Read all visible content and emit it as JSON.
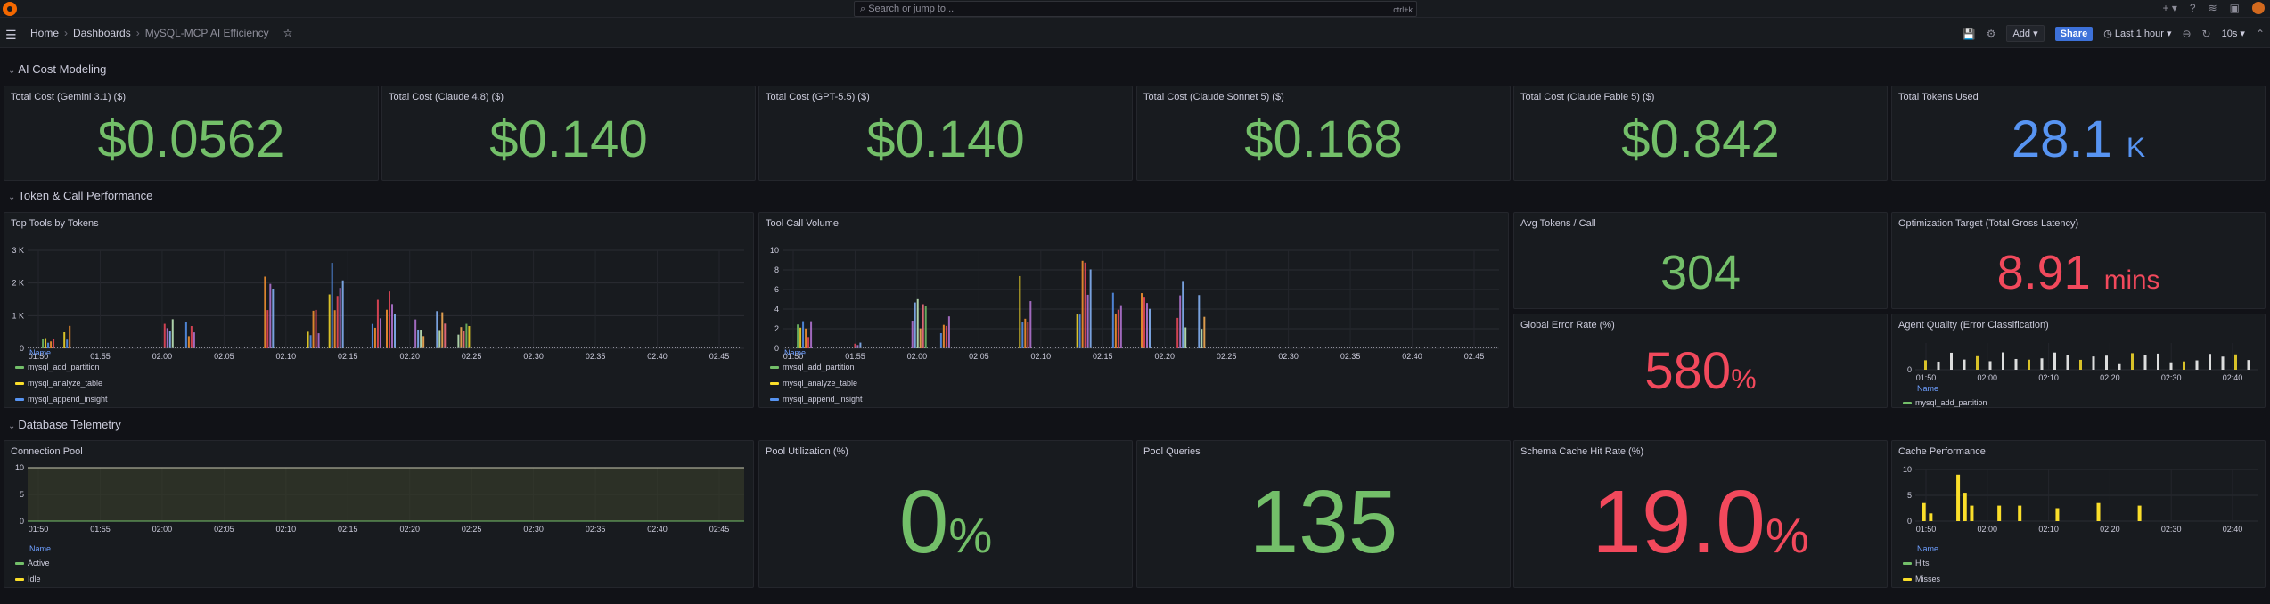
{
  "topbar": {
    "search_placeholder": "Search or jump to...",
    "shortcut": "ctrl+k"
  },
  "breadcrumb": {
    "home": "Home",
    "dashboards": "Dashboards",
    "current": "MySQL-MCP AI Efficiency"
  },
  "toolbar": {
    "add_label": "Add",
    "share_label": "Share",
    "time_range": "Last 1 hour",
    "refresh": "10s"
  },
  "sections": {
    "ai_cost": "AI Cost Modeling",
    "token_perf": "Token & Call Performance",
    "db_telemetry": "Database Telemetry"
  },
  "stats": {
    "gemini": {
      "title": "Total Cost (Gemini 3.1) ($)",
      "value": "$0.0562"
    },
    "claude48": {
      "title": "Total Cost (Claude 4.8) ($)",
      "value": "$0.140"
    },
    "gpt55": {
      "title": "Total Cost (GPT-5.5) ($)",
      "value": "$0.140"
    },
    "sonnet5": {
      "title": "Total Cost (Claude Sonnet 5) ($)",
      "value": "$0.168"
    },
    "fable5": {
      "title": "Total Cost (Claude Fable 5) ($)",
      "value": "$0.842"
    },
    "tokens": {
      "title": "Total Tokens Used",
      "value": "28.1",
      "unit": "K"
    },
    "avg_tokens": {
      "title": "Avg Tokens / Call",
      "value": "304"
    },
    "opt_target": {
      "title": "Optimization Target (Total Gross Latency)",
      "value": "8.91",
      "unit": "mins"
    },
    "error_rate": {
      "title": "Global Error Rate (%)",
      "value": "580",
      "unit": "%"
    },
    "pool_util": {
      "title": "Pool Utilization (%)",
      "value": "0",
      "unit": "%"
    },
    "pool_queries": {
      "title": "Pool Queries",
      "value": "135"
    },
    "cache_hit": {
      "title": "Schema Cache Hit Rate (%)",
      "value": "19.0",
      "unit": "%"
    }
  },
  "charts": {
    "top_tools": {
      "title": "Top Tools by Tokens"
    },
    "tool_calls": {
      "title": "Tool Call Volume"
    },
    "agent_quality": {
      "title": "Agent Quality (Error Classification)"
    },
    "conn_pool": {
      "title": "Connection Pool"
    },
    "cache_perf": {
      "title": "Cache Performance"
    }
  },
  "legend": {
    "name_header": "Name",
    "tools": [
      "mysql_add_partition",
      "mysql_analyze_table",
      "mysql_append_insight"
    ],
    "agent_tools": [
      "mysql_add_partition"
    ],
    "pool": [
      "Active",
      "Idle"
    ],
    "cache": [
      "Hits",
      "Misses"
    ]
  },
  "chart_data": [
    {
      "type": "bar",
      "title": "Top Tools by Tokens",
      "x": [
        "01:50",
        "01:55",
        "02:00",
        "02:05",
        "02:10",
        "02:15",
        "02:20",
        "02:25",
        "02:30",
        "02:35",
        "02:40",
        "02:45"
      ],
      "ylim": [
        0,
        3000
      ],
      "yticks": [
        "0",
        "1 K",
        "2 K",
        "3 K"
      ],
      "series": [
        {
          "name": "mysql_add_partition",
          "color": "#73bf69"
        },
        {
          "name": "mysql_analyze_table",
          "color": "#fade2a"
        },
        {
          "name": "mysql_append_insight",
          "color": "#5794f2"
        }
      ]
    },
    {
      "type": "bar",
      "title": "Tool Call Volume",
      "x": [
        "01:50",
        "01:55",
        "02:00",
        "02:05",
        "02:10",
        "02:15",
        "02:20",
        "02:25",
        "02:30",
        "02:35",
        "02:40",
        "02:45"
      ],
      "ylim": [
        0,
        10
      ],
      "yticks": [
        "0",
        "2",
        "4",
        "6",
        "8",
        "10"
      ]
    },
    {
      "type": "bar",
      "title": "Agent Quality (Error Classification)",
      "x": [
        "01:50",
        "02:00",
        "02:10",
        "02:20",
        "02:30",
        "02:40"
      ],
      "yticks": [
        "0"
      ]
    },
    {
      "type": "area",
      "title": "Connection Pool",
      "x": [
        "01:50",
        "01:55",
        "02:00",
        "02:05",
        "02:10",
        "02:15",
        "02:20",
        "02:25",
        "02:30",
        "02:35",
        "02:40",
        "02:45"
      ],
      "ylim": [
        0,
        10
      ],
      "yticks": [
        "0",
        "5",
        "10"
      ],
      "series": [
        {
          "name": "Active",
          "color": "#73bf69"
        },
        {
          "name": "Idle",
          "color": "#fade2a"
        }
      ]
    },
    {
      "type": "bar",
      "title": "Cache Performance",
      "x": [
        "01:50",
        "02:00",
        "02:10",
        "02:20",
        "02:30",
        "02:40"
      ],
      "yticks": [
        "0",
        "5",
        "10"
      ],
      "series": [
        {
          "name": "Hits",
          "color": "#73bf69"
        },
        {
          "name": "Misses",
          "color": "#fade2a"
        }
      ]
    }
  ]
}
